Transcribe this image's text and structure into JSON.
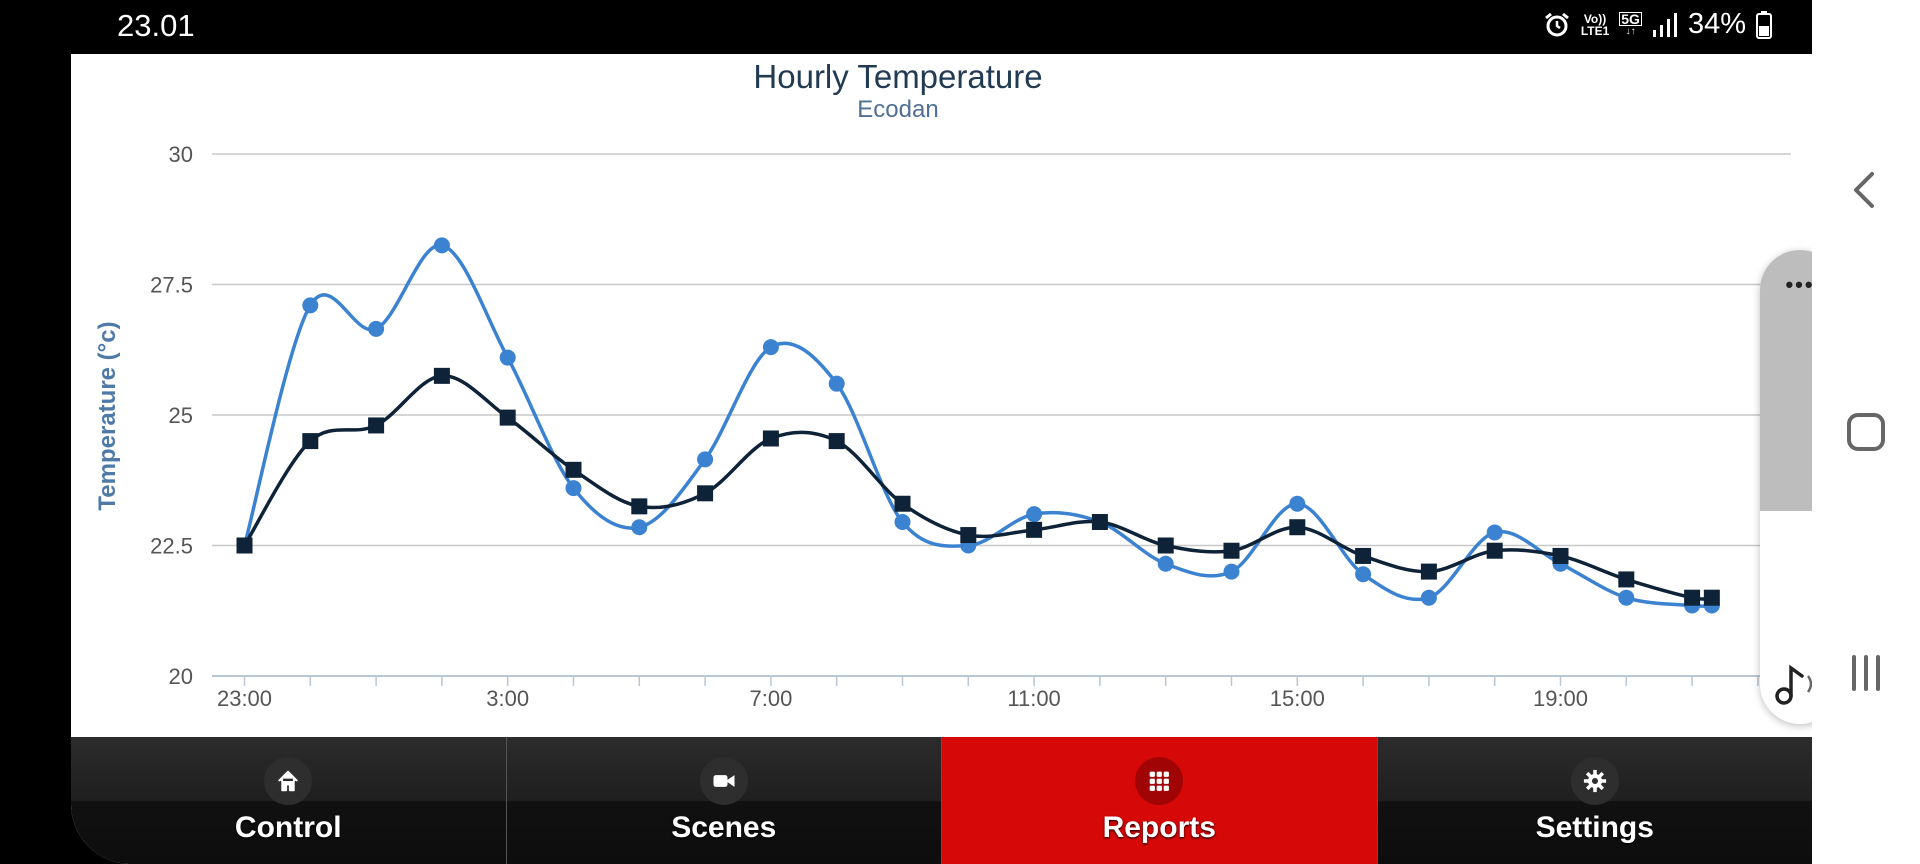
{
  "status_bar": {
    "time": "23.01",
    "network_top": "Vo))",
    "network_bottom": "LTE1",
    "network_type": "5G",
    "battery": "34%",
    "icons": [
      "alarm-icon",
      "volte-icon",
      "5g-icon",
      "signal-icon",
      "battery-icon"
    ]
  },
  "chart_data": {
    "type": "line",
    "title": "Hourly Temperature",
    "subtitle": "Ecodan",
    "ylabel": "Temperature (°c)",
    "xlabel": "",
    "ylim": [
      20,
      30
    ],
    "y_ticks": [
      "20",
      "22.5",
      "25",
      "27.5",
      "30"
    ],
    "y_tick_values": [
      20,
      22.5,
      25,
      27.5,
      30
    ],
    "x_tick_labels": [
      "23:00",
      "3:00",
      "7:00",
      "11:00",
      "15:00",
      "19:00"
    ],
    "x_tick_hours": [
      0,
      4,
      8,
      12,
      16,
      20
    ],
    "x_range_hours": [
      0,
      22.5
    ],
    "grid": true,
    "series": [
      {
        "color": "#3b82d1",
        "marker": "circle",
        "hours": [
          0,
          1,
          2,
          3,
          4,
          5,
          6,
          7,
          8,
          9,
          10,
          11,
          12,
          13,
          14,
          15,
          16,
          17,
          18,
          19,
          20,
          21,
          22,
          22.3
        ],
        "values": [
          22.5,
          27.1,
          26.65,
          28.25,
          26.1,
          23.6,
          22.85,
          24.15,
          26.3,
          25.6,
          22.95,
          22.5,
          23.1,
          22.95,
          22.15,
          22.0,
          23.3,
          21.95,
          21.5,
          22.75,
          22.15,
          21.5,
          21.35,
          21.35
        ]
      },
      {
        "color": "#0e2238",
        "marker": "square",
        "hours": [
          0,
          1,
          2,
          3,
          4,
          5,
          6,
          7,
          8,
          9,
          10,
          11,
          12,
          13,
          14,
          15,
          16,
          17,
          18,
          19,
          20,
          21,
          22,
          22.3
        ],
        "values": [
          22.5,
          24.5,
          24.8,
          25.75,
          24.95,
          23.95,
          23.25,
          23.5,
          24.55,
          24.5,
          23.3,
          22.7,
          22.8,
          22.95,
          22.5,
          22.4,
          22.85,
          22.3,
          22.0,
          22.4,
          22.3,
          21.85,
          21.5,
          21.5
        ]
      }
    ],
    "colors": {
      "title": "#223b53",
      "subtitle": "#4f7094",
      "axis_label": "#4f7aa8",
      "grid": "#c8c8c8",
      "tick": "#555555"
    }
  },
  "tabs": [
    {
      "label": "Control",
      "icon": "home-icon",
      "active": false
    },
    {
      "label": "Scenes",
      "icon": "video-camera-icon",
      "active": false
    },
    {
      "label": "Reports",
      "icon": "grid-icon",
      "active": true
    },
    {
      "label": "Settings",
      "icon": "gear-icon",
      "active": false
    }
  ],
  "volume_panel": {
    "more_label": "•••",
    "level": 0.55,
    "icon": "music-note-icon"
  },
  "nav_bar": {
    "icons": [
      "back-icon",
      "home-square-icon",
      "recents-icon"
    ]
  },
  "colors": {
    "active_tab": "#d60808",
    "status_bar_bg": "#000000"
  }
}
